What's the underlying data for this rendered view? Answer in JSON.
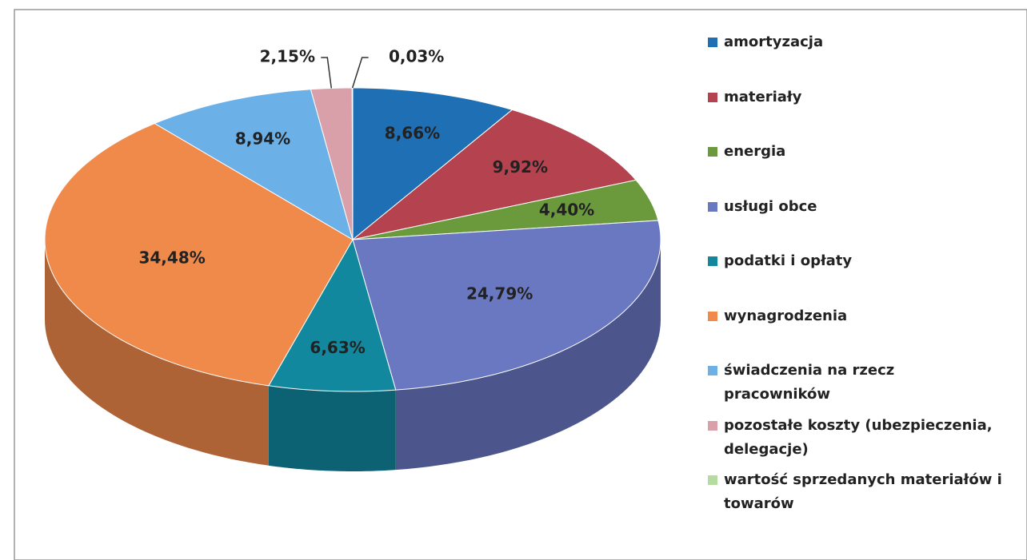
{
  "chart_data": {
    "type": "pie3d",
    "categories": [
      "amortyzacja",
      "materiały",
      "energia",
      "usługi obce",
      "podatki i opłaty",
      "wynagrodzenia",
      "świadczenia na rzecz pracowników",
      "pozostałe koszty (ubezpieczenia, delegacje)",
      "wartość sprzedanych materiałów i towarów"
    ],
    "values": [
      8.66,
      9.92,
      4.4,
      24.79,
      6.63,
      34.48,
      8.94,
      2.15,
      0.03
    ],
    "value_labels": [
      "8,66%",
      "9,92%",
      "4,40%",
      "24,79%",
      "6,63%",
      "34,48%",
      "8,94%",
      "2,15%",
      "0,03%"
    ],
    "colors": [
      "#1f6fb5",
      "#b5434f",
      "#6a9a3c",
      "#6a78c2",
      "#11889e",
      "#f08a4b",
      "#6cb0e8",
      "#d9a0aa",
      "#b6dba0"
    ],
    "legend": "right"
  }
}
